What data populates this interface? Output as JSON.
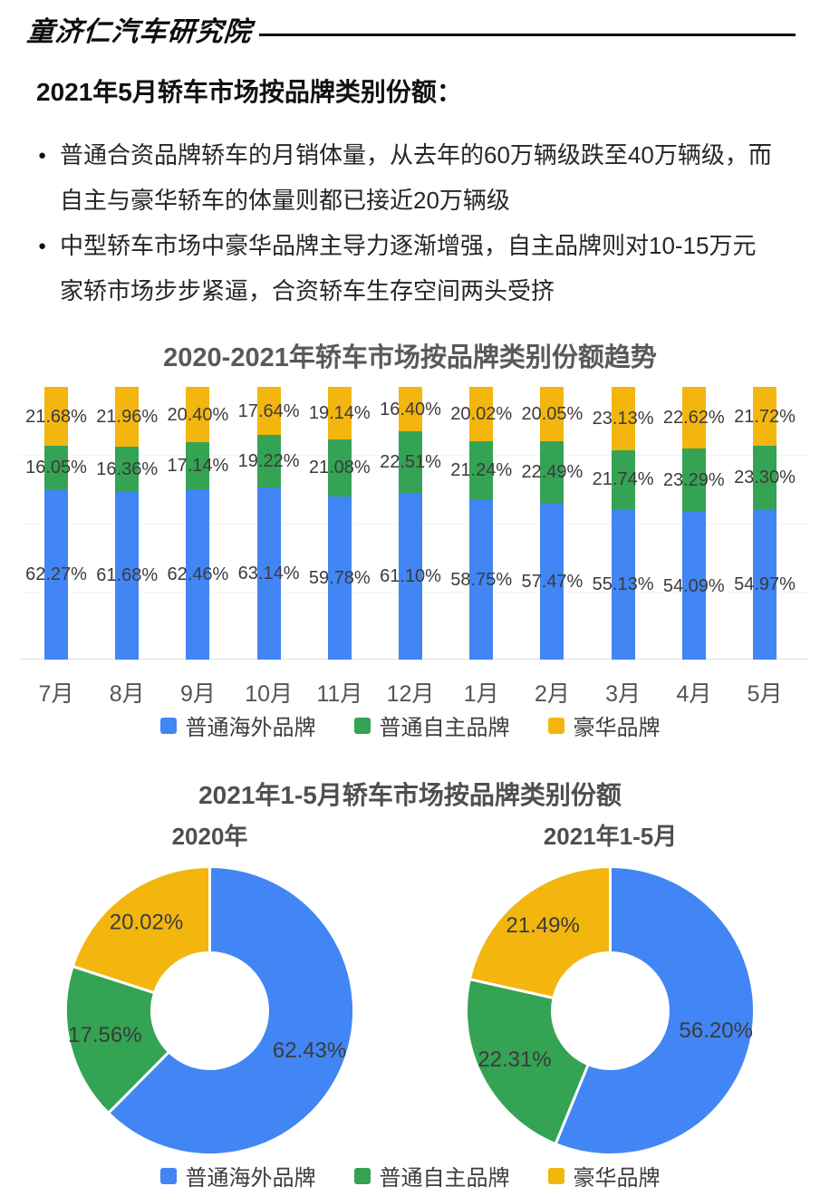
{
  "header": {
    "brand": "童济仁汽车研究院"
  },
  "title": "2021年5月轿车市场按品牌类别份额：",
  "bullets": [
    {
      "lines": [
        "普通合资品牌轿车的月销体量，从去年的60万辆级跌至40万辆级，而",
        "自主与豪华轿车的体量则都已接近20万辆级"
      ]
    },
    {
      "lines": [
        "中型轿车市场中豪华品牌主导力逐渐增强，自主品牌则对10-15万元",
        "家轿市场步步紧逼，合资轿车生存空间两头受挤"
      ]
    }
  ],
  "colors": {
    "blue": "#4285F4",
    "green": "#34A353",
    "yellow": "#F2B60E"
  },
  "legend": {
    "items": [
      {
        "label": "普通海外品牌",
        "color_key": "blue"
      },
      {
        "label": "普通自主品牌",
        "color_key": "green"
      },
      {
        "label": "豪华品牌",
        "color_key": "yellow"
      }
    ]
  },
  "chart_data": [
    {
      "type": "bar",
      "variant": "stacked-100-percent",
      "title": "2020-2021年轿车市场按品牌类别份额趋势",
      "categories": [
        "7月",
        "8月",
        "9月",
        "10月",
        "11月",
        "12月",
        "1月",
        "2月",
        "3月",
        "4月",
        "5月"
      ],
      "series": [
        {
          "name": "普通海外品牌",
          "color_key": "blue",
          "values": [
            62.27,
            61.68,
            62.46,
            63.14,
            59.78,
            61.1,
            58.75,
            57.47,
            55.13,
            54.09,
            54.97
          ]
        },
        {
          "name": "普通自主品牌",
          "color_key": "green",
          "values": [
            16.05,
            16.36,
            17.14,
            19.22,
            21.08,
            22.51,
            21.24,
            22.49,
            21.74,
            23.29,
            23.3
          ]
        },
        {
          "name": "豪华品牌",
          "color_key": "yellow",
          "values": [
            21.68,
            21.96,
            20.4,
            17.64,
            19.14,
            16.4,
            20.02,
            20.05,
            23.13,
            22.62,
            21.72
          ]
        }
      ],
      "unit": "%",
      "ylim": [
        0,
        100
      ],
      "grid": "faint-horizontal",
      "legend_position": "bottom"
    },
    {
      "type": "pie",
      "variant": "donut",
      "section_title": "2021年1-5月轿车市场按品牌类别份额",
      "charts": [
        {
          "title": "2020年",
          "slices": [
            {
              "label": "普通海外品牌",
              "value": 62.43,
              "color_key": "blue"
            },
            {
              "label": "普通自主品牌",
              "value": 17.56,
              "color_key": "green"
            },
            {
              "label": "豪华品牌",
              "value": 20.02,
              "color_key": "yellow"
            }
          ]
        },
        {
          "title": "2021年1-5月",
          "slices": [
            {
              "label": "普通海外品牌",
              "value": 56.2,
              "color_key": "blue"
            },
            {
              "label": "普通自主品牌",
              "value": 22.31,
              "color_key": "green"
            },
            {
              "label": "豪华品牌",
              "value": 21.49,
              "color_key": "yellow"
            }
          ]
        }
      ],
      "start_angle": "top",
      "direction": "clockwise",
      "legend_position": "bottom"
    }
  ]
}
